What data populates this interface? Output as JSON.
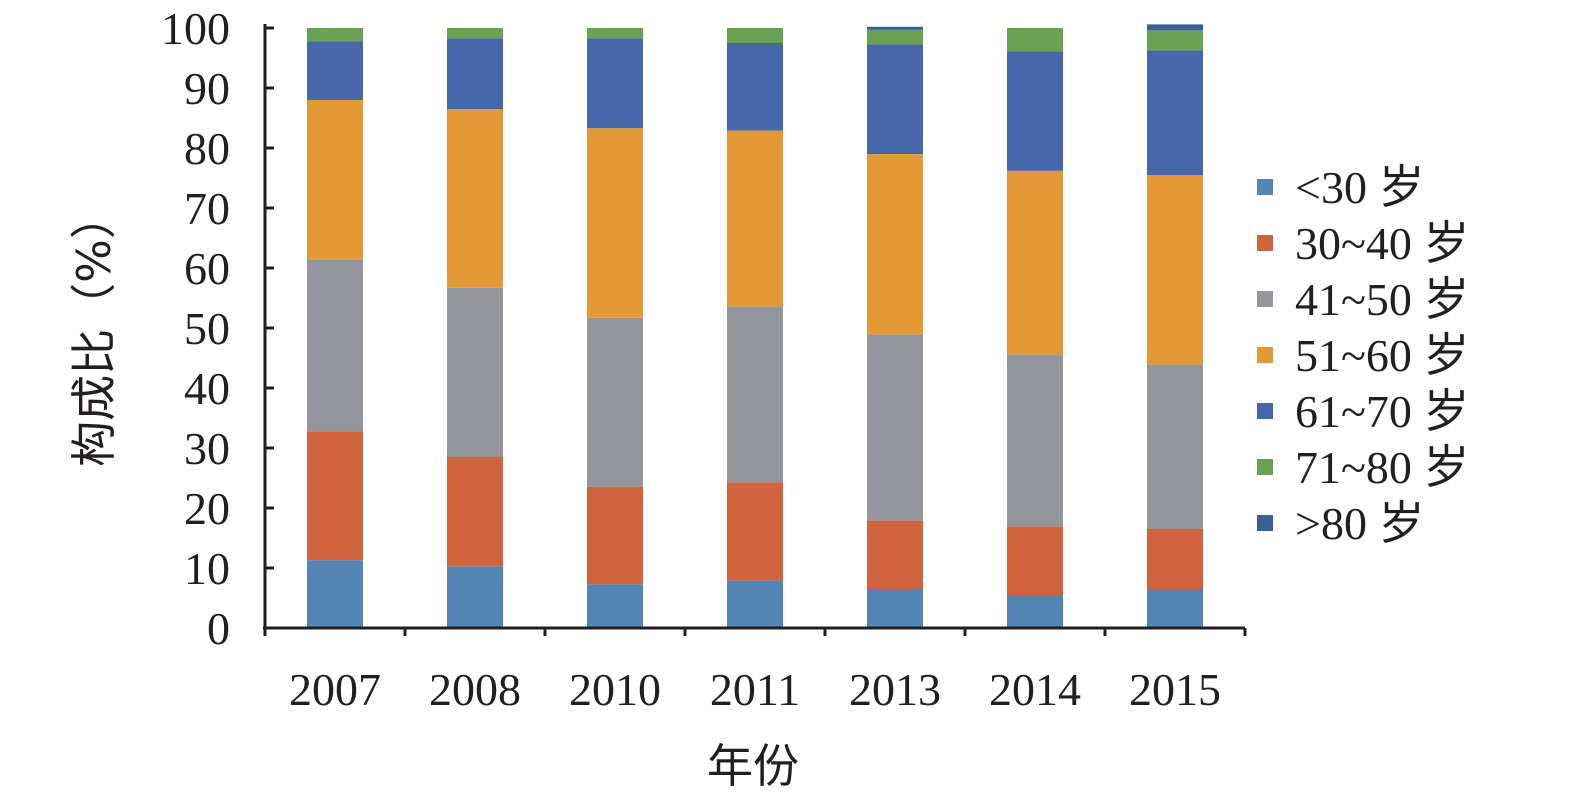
{
  "chart_data": {
    "type": "bar",
    "stacked": true,
    "categories": [
      "2007",
      "2008",
      "2010",
      "2011",
      "2013",
      "2014",
      "2015"
    ],
    "series": [
      {
        "name": "<30 岁",
        "color": "#5585b5",
        "values": [
          11.3,
          10.3,
          7.3,
          7.9,
          6.5,
          5.5,
          6.5
        ]
      },
      {
        "name": "30~40 岁",
        "color": "#d0643f",
        "values": [
          21.5,
          18.2,
          16.2,
          16.4,
          11.4,
          11.4,
          10.0
        ]
      },
      {
        "name": "41~50 岁",
        "color": "#95959d",
        "values": [
          28.6,
          28.2,
          28.2,
          29.3,
          31.0,
          28.7,
          27.4
        ]
      },
      {
        "name": "51~60 岁",
        "color": "#e39a36",
        "values": [
          26.6,
          29.8,
          31.6,
          29.3,
          30.1,
          30.6,
          31.6
        ]
      },
      {
        "name": "61~70 岁",
        "color": "#4767aa",
        "values": [
          9.8,
          11.8,
          15.0,
          14.6,
          18.3,
          19.9,
          20.8
        ]
      },
      {
        "name": "71~80 岁",
        "color": "#6aa153",
        "values": [
          2.2,
          1.7,
          1.7,
          2.5,
          2.4,
          3.9,
          3.3
        ]
      },
      {
        "name": ">80 岁",
        "color": "#3b5e95",
        "values": [
          0.0,
          0.0,
          0.0,
          0.0,
          0.5,
          0.0,
          1.0
        ]
      }
    ],
    "xlabel": "年份",
    "ylabel": "构成比（%）",
    "ylim": [
      0,
      100
    ],
    "yticks": [
      0,
      10,
      20,
      30,
      40,
      50,
      60,
      70,
      80,
      90,
      100
    ],
    "grid": false,
    "legend_position": "right"
  }
}
